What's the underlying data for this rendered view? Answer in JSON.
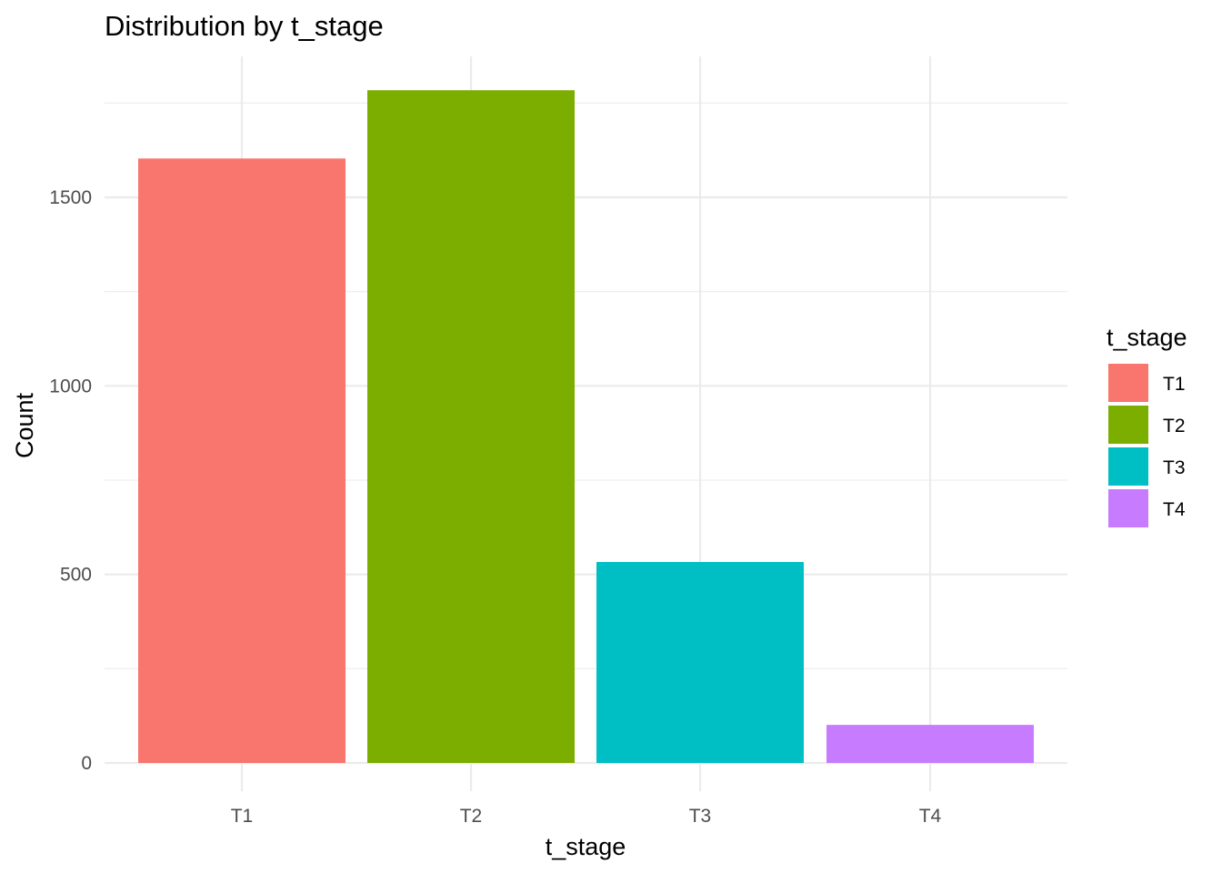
{
  "chart_data": {
    "type": "bar",
    "title": "Distribution by t_stage",
    "xlabel": "t_stage",
    "ylabel": "Count",
    "categories": [
      "T1",
      "T2",
      "T3",
      "T4"
    ],
    "values": [
      1603,
      1784,
      533,
      101
    ],
    "colors": [
      "#F8766D",
      "#7CAE00",
      "#00BFC4",
      "#C77CFF"
    ],
    "ylim": [
      0,
      1800
    ],
    "yticks": [
      0,
      500,
      1000,
      1500
    ],
    "ytick_labels": [
      "0",
      "500",
      "1000",
      "1500"
    ],
    "grid": true,
    "legend": {
      "title": "t_stage",
      "position": "right",
      "items": [
        "T1",
        "T2",
        "T3",
        "T4"
      ]
    }
  }
}
